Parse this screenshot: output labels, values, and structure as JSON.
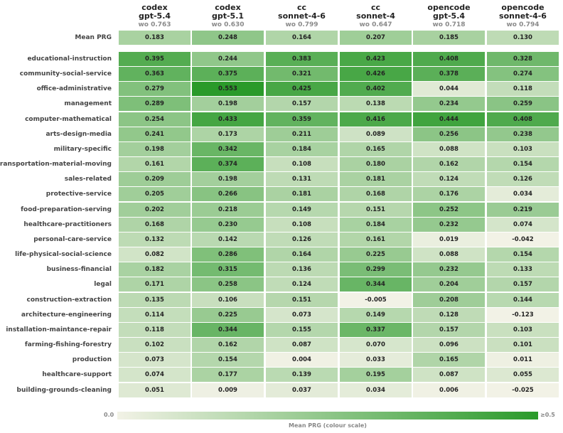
{
  "chart_data": {
    "type": "heatmap",
    "columns": [
      {
        "line1": "codex",
        "line2": "gpt-5.4",
        "wo": "wo 0.763"
      },
      {
        "line1": "codex",
        "line2": "gpt-5.1",
        "wo": "wo 0.630"
      },
      {
        "line1": "cc",
        "line2": "sonnet-4-6",
        "wo": "wo 0.799"
      },
      {
        "line1": "cc",
        "line2": "sonnet-4",
        "wo": "wo 0.647"
      },
      {
        "line1": "opencode",
        "line2": "gpt-5.4",
        "wo": "wo 0.718"
      },
      {
        "line1": "opencode",
        "line2": "sonnet-4-6",
        "wo": "wo 0.794"
      }
    ],
    "mean_row": {
      "label": "Mean PRG",
      "values": [
        "0.183",
        "0.248",
        "0.164",
        "0.207",
        "0.185",
        "0.130"
      ]
    },
    "rows": [
      {
        "label": "educational-instruction",
        "values": [
          "0.395",
          "0.244",
          "0.383",
          "0.423",
          "0.408",
          "0.328"
        ]
      },
      {
        "label": "community-social-service",
        "values": [
          "0.363",
          "0.375",
          "0.321",
          "0.426",
          "0.378",
          "0.274"
        ]
      },
      {
        "label": "office-administrative",
        "values": [
          "0.279",
          "0.553",
          "0.425",
          "0.402",
          "0.044",
          "0.118"
        ]
      },
      {
        "label": "management",
        "values": [
          "0.289",
          "0.198",
          "0.157",
          "0.138",
          "0.234",
          "0.259"
        ]
      },
      {
        "label": "computer-mathematical",
        "values": [
          "0.254",
          "0.433",
          "0.359",
          "0.416",
          "0.444",
          "0.408"
        ]
      },
      {
        "label": "arts-design-media",
        "values": [
          "0.241",
          "0.173",
          "0.211",
          "0.089",
          "0.256",
          "0.238"
        ]
      },
      {
        "label": "military-specific",
        "values": [
          "0.198",
          "0.342",
          "0.184",
          "0.165",
          "0.088",
          "0.103"
        ]
      },
      {
        "label": "transportation-material-moving",
        "values": [
          "0.161",
          "0.374",
          "0.108",
          "0.180",
          "0.162",
          "0.154"
        ]
      },
      {
        "label": "sales-related",
        "values": [
          "0.209",
          "0.198",
          "0.131",
          "0.181",
          "0.124",
          "0.126"
        ]
      },
      {
        "label": "protective-service",
        "values": [
          "0.205",
          "0.266",
          "0.181",
          "0.168",
          "0.176",
          "0.034"
        ]
      },
      {
        "label": "food-preparation-serving",
        "values": [
          "0.202",
          "0.218",
          "0.149",
          "0.151",
          "0.252",
          "0.219"
        ]
      },
      {
        "label": "healthcare-practitioners",
        "values": [
          "0.168",
          "0.230",
          "0.108",
          "0.184",
          "0.232",
          "0.074"
        ]
      },
      {
        "label": "personal-care-service",
        "values": [
          "0.132",
          "0.142",
          "0.126",
          "0.161",
          "0.019",
          "-0.042"
        ]
      },
      {
        "label": "life-physical-social-science",
        "values": [
          "0.082",
          "0.286",
          "0.164",
          "0.225",
          "0.088",
          "0.154"
        ]
      },
      {
        "label": "business-financial",
        "values": [
          "0.182",
          "0.315",
          "0.136",
          "0.299",
          "0.232",
          "0.133"
        ]
      },
      {
        "label": "legal",
        "values": [
          "0.171",
          "0.258",
          "0.124",
          "0.344",
          "0.204",
          "0.157"
        ]
      },
      {
        "label": "construction-extraction",
        "values": [
          "0.135",
          "0.106",
          "0.151",
          "-0.005",
          "0.208",
          "0.144"
        ]
      },
      {
        "label": "architecture-engineering",
        "values": [
          "0.114",
          "0.225",
          "0.073",
          "0.149",
          "0.128",
          "-0.123"
        ]
      },
      {
        "label": "installation-maintance-repair",
        "values": [
          "0.118",
          "0.344",
          "0.155",
          "0.337",
          "0.157",
          "0.103"
        ]
      },
      {
        "label": "farming-fishing-forestry",
        "values": [
          "0.102",
          "0.162",
          "0.087",
          "0.070",
          "0.096",
          "0.101"
        ]
      },
      {
        "label": "production",
        "values": [
          "0.073",
          "0.154",
          "0.004",
          "0.033",
          "0.165",
          "0.011"
        ]
      },
      {
        "label": "healthcare-support",
        "values": [
          "0.074",
          "0.177",
          "0.139",
          "0.195",
          "0.087",
          "0.055"
        ]
      },
      {
        "label": "building-grounds-cleaning",
        "values": [
          "0.051",
          "0.009",
          "0.037",
          "0.034",
          "0.006",
          "-0.025"
        ]
      }
    ],
    "colorbar": {
      "min_label": "0.0",
      "max_label": "≥0.5",
      "title": "Mean PRG (colour scale)",
      "vmin": 0.0,
      "vmax": 0.5,
      "color_low": "#f2f2e6",
      "color_high": "#2a9a2a"
    }
  }
}
